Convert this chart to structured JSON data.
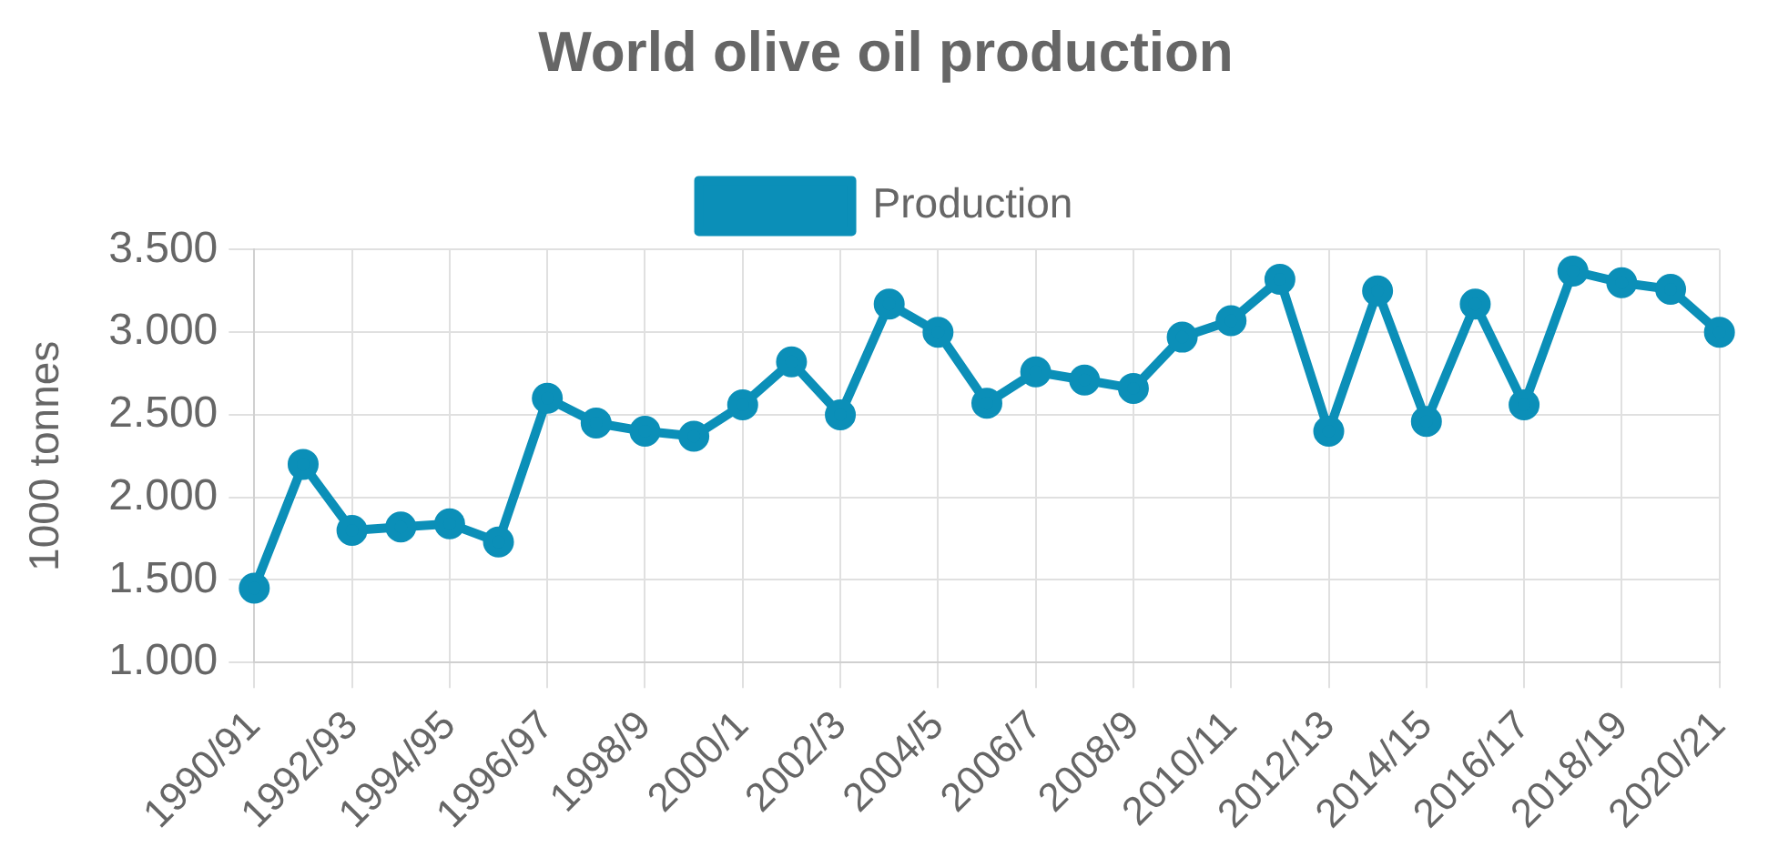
{
  "chart_data": {
    "type": "line",
    "title": "World olive oil production",
    "ylabel": "1000 tonnes",
    "categories": [
      "1990/91",
      null,
      "1992/93",
      null,
      "1994/95",
      null,
      "1996/97",
      null,
      "1998/9",
      null,
      "2000/1",
      null,
      "2002/3",
      null,
      "2004/5",
      null,
      "2006/7",
      null,
      "2008/9",
      null,
      "2010/11",
      null,
      "2012/13",
      null,
      "2014/15",
      null,
      "2016/17",
      null,
      "2018/19",
      null,
      "2020/21"
    ],
    "series": [
      {
        "name": "Production",
        "color": "#0b8fb8",
        "values": [
          1450,
          2200,
          1800,
          1820,
          1840,
          1730,
          2600,
          2450,
          2400,
          2370,
          2560,
          2820,
          2500,
          3170,
          3000,
          2570,
          2760,
          2710,
          2660,
          2970,
          3070,
          3320,
          2400,
          3250,
          2460,
          3170,
          2560,
          3370,
          3300,
          3260,
          3000
        ]
      }
    ],
    "ylim": [
      1000,
      3500
    ],
    "yticks": [
      {
        "value": 1000,
        "label": "1.000"
      },
      {
        "value": 1500,
        "label": "1.500"
      },
      {
        "value": 2000,
        "label": "2.000"
      },
      {
        "value": 2500,
        "label": "2.500"
      },
      {
        "value": 3000,
        "label": "3.000"
      },
      {
        "value": 3500,
        "label": "3.500"
      }
    ],
    "grid": true,
    "legend": "top",
    "marker": "circle",
    "line_style": "solid"
  }
}
